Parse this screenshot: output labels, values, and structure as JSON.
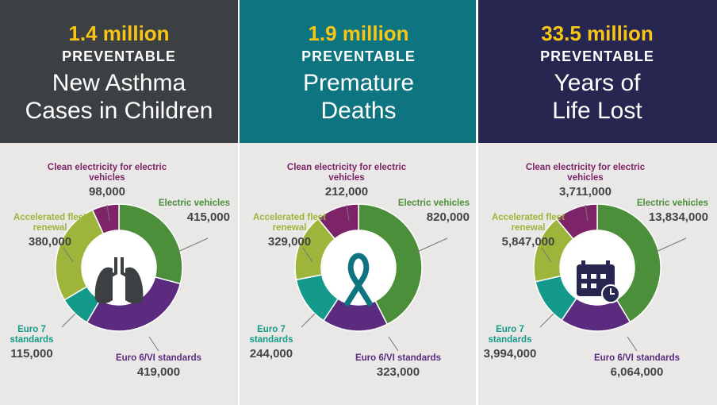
{
  "chart_data": [
    {
      "type": "donut",
      "headline": "1.4 million",
      "kicker": "PREVENTABLE",
      "title_lines": [
        "New Asthma",
        "Cases in Children"
      ],
      "categories": [
        "Electric vehicles",
        "Euro 6/VI standards",
        "Euro 7 standards",
        "Accelerated fleet renewal",
        "Clean electricity for electric vehicles"
      ],
      "values": [
        415000,
        419000,
        115000,
        380000,
        98000
      ],
      "value_labels": [
        "415,000",
        "419,000",
        "115,000",
        "380,000",
        "98,000"
      ],
      "colors": [
        "#4b8f3b",
        "#5a2b7f",
        "#139a8a",
        "#9db53b",
        "#7d2468"
      ],
      "header_color": "#3c4043"
    },
    {
      "type": "donut",
      "headline": "1.9 million",
      "kicker": "PREVENTABLE",
      "title_lines": [
        "Premature",
        "Deaths"
      ],
      "categories": [
        "Electric vehicles",
        "Euro 6/VI standards",
        "Euro 7 standards",
        "Accelerated fleet renewal",
        "Clean electricity for electric vehicles"
      ],
      "values": [
        820000,
        323000,
        244000,
        329000,
        212000
      ],
      "value_labels": [
        "820,000",
        "323,000",
        "244,000",
        "329,000",
        "212,000"
      ],
      "colors": [
        "#4b8f3b",
        "#5a2b7f",
        "#139a8a",
        "#9db53b",
        "#7d2468"
      ],
      "header_color": "#0e7580"
    },
    {
      "type": "donut",
      "headline": "33.5 million",
      "kicker": "PREVENTABLE",
      "title_lines": [
        "Years of",
        "Life Lost"
      ],
      "categories": [
        "Electric vehicles",
        "Euro 6/VI standards",
        "Euro 7 standards",
        "Accelerated fleet renewal",
        "Clean electricity for electric vehicles"
      ],
      "values": [
        13834000,
        6064000,
        3994000,
        5847000,
        3711000
      ],
      "value_labels": [
        "13,834,000",
        "6,064,000",
        "3,994,000",
        "5,847,000",
        "3,711,000"
      ],
      "colors": [
        "#4b8f3b",
        "#5a2b7f",
        "#139a8a",
        "#9db53b",
        "#7d2468"
      ],
      "header_color": "#262651"
    }
  ]
}
